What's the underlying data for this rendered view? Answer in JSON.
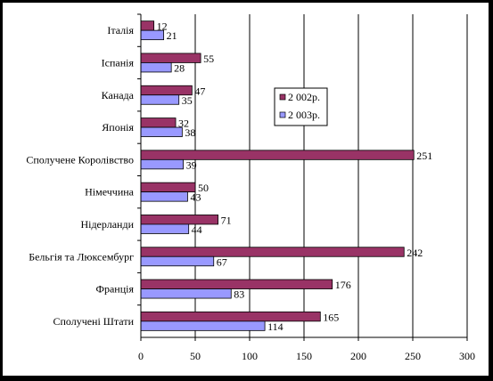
{
  "chart_data": {
    "type": "bar",
    "orientation": "horizontal",
    "categories": [
      "Італія",
      "Іспанія",
      "Канада",
      "Японія",
      "Сполучене Королівство",
      "Німеччина",
      "Нідерланди",
      "Бельгія та Люксембург",
      "Франція",
      "Сполучені Штати"
    ],
    "series": [
      {
        "name": "2 002р.",
        "values": [
          12,
          55,
          47,
          32,
          251,
          50,
          71,
          242,
          176,
          165
        ],
        "color": "#993366"
      },
      {
        "name": "2 003р.",
        "values": [
          21,
          28,
          35,
          38,
          39,
          43,
          44,
          67,
          83,
          114
        ],
        "color": "#9999ff"
      }
    ],
    "xlim": [
      0,
      300
    ],
    "xticks": [
      "0",
      "50",
      "100",
      "150",
      "200",
      "250",
      "300"
    ],
    "grid": true,
    "legend_position": "center-right",
    "title": "",
    "xlabel": "",
    "ylabel": ""
  }
}
